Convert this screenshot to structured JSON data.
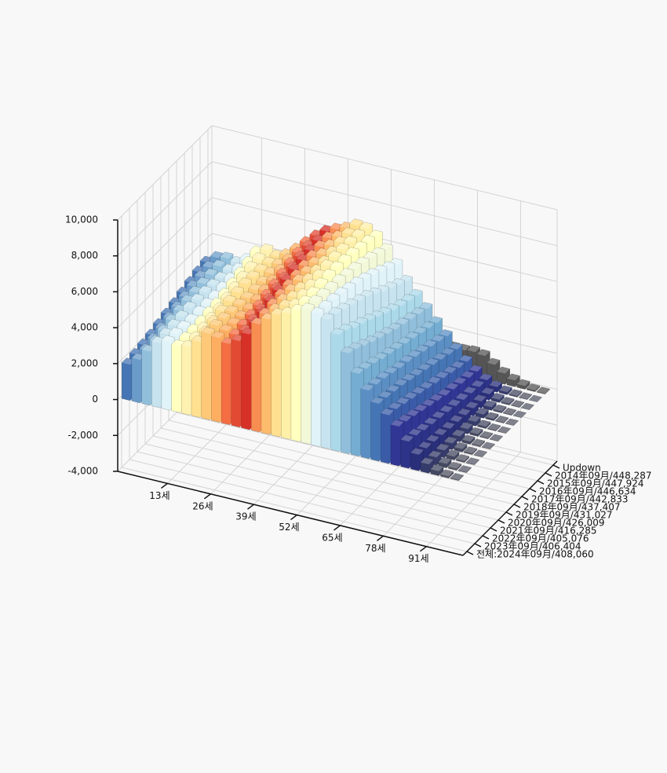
{
  "chart_data": {
    "type": "bar3d",
    "x": [
      0,
      3,
      6,
      9,
      12,
      15,
      18,
      21,
      24,
      27,
      30,
      33,
      36,
      39,
      42,
      45,
      48,
      51,
      54,
      57,
      60,
      63,
      66,
      69,
      72,
      75,
      78,
      81,
      84,
      87,
      90,
      93,
      96,
      99
    ],
    "xlim": [
      -2,
      102
    ],
    "xticks": [
      {
        "value": 13,
        "label": "13세"
      },
      {
        "value": 26,
        "label": "26세"
      },
      {
        "value": 39,
        "label": "39세"
      },
      {
        "value": 52,
        "label": "52세"
      },
      {
        "value": 65,
        "label": "65세"
      },
      {
        "value": 78,
        "label": "78세"
      },
      {
        "value": 91,
        "label": "91세"
      }
    ],
    "zlim": [
      -4000,
      10000
    ],
    "zticks": [
      {
        "value": -4000,
        "label": "-4,000"
      },
      {
        "value": -2000,
        "label": "-2,000"
      },
      0,
      {
        "value": 2000,
        "label": "2,000"
      },
      {
        "value": 4000,
        "label": "4,000"
      },
      {
        "value": 6000,
        "label": "6,000"
      },
      {
        "value": 8000,
        "label": "8,000"
      },
      {
        "value": 10000,
        "label": "10,000"
      }
    ],
    "grid": true,
    "colors": [
      "#4575b4",
      "#6a9bc9",
      "#91bfdb",
      "#c6e3ef",
      "#e0f3f8",
      "#ffffbf",
      "#fff2b0",
      "#fee090",
      "#fdc877",
      "#fdae61",
      "#f46d43",
      "#e34a33",
      "#d73027",
      "#f88d52",
      "#fdbb6c",
      "#fee090",
      "#fff0a8",
      "#ffffbf",
      "#f2f8d8",
      "#e0f3f8",
      "#c6e3ef",
      "#abd9e9",
      "#91bfdb",
      "#74add1",
      "#5b8fc4",
      "#4575b4",
      "#3a5ca8",
      "#313695",
      "#2c3388",
      "#2a2f7a",
      "#353b6a",
      "#444860",
      "#4f5260",
      "#555866"
    ],
    "series": [
      {
        "name": "Updown",
        "color": "#555555",
        "values": [
          -1300,
          -1300,
          -800,
          -100,
          -200,
          -850,
          -1000,
          -400,
          0,
          -550,
          -1250,
          -1450,
          -1350,
          -900,
          -700,
          -600,
          -350,
          250,
          1050,
          1650,
          2250,
          2200,
          1900,
          1550,
          1350,
          1350,
          1400,
          1320,
          960,
          610,
          360,
          185,
          75,
          32
        ]
      },
      {
        "name": "2014年09月/448,287",
        "values": [
          3300,
          3700,
          3800,
          3700,
          4000,
          4550,
          4800,
          4600,
          4800,
          5250,
          5750,
          6250,
          6650,
          6900,
          7100,
          7400,
          7350,
          7050,
          6450,
          5750,
          4950,
          4300,
          3700,
          3050,
          2450,
          1850,
          1300,
          880,
          540,
          290,
          140,
          65,
          25,
          8
        ]
      },
      {
        "name": "2015年09月/447,924",
        "values": [
          3200,
          3600,
          3800,
          3700,
          3900,
          4400,
          4750,
          4650,
          4700,
          5100,
          5600,
          6100,
          6550,
          6850,
          7050,
          7350,
          7400,
          7200,
          6650,
          6000,
          5200,
          4450,
          3850,
          3200,
          2600,
          2000,
          1400,
          980,
          600,
          330,
          160,
          75,
          30,
          10
        ]
      },
      {
        "name": "2016年09月/446,634",
        "values": [
          3050,
          3500,
          3750,
          3700,
          3800,
          4250,
          4700,
          4700,
          4650,
          4950,
          5450,
          5950,
          6450,
          6800,
          7000,
          7300,
          7450,
          7300,
          6850,
          6250,
          5450,
          4600,
          4000,
          3350,
          2750,
          2150,
          1550,
          1080,
          680,
          370,
          180,
          85,
          35,
          12
        ]
      },
      {
        "name": "2017年09月/442,833",
        "values": [
          2900,
          3400,
          3700,
          3750,
          3750,
          4100,
          4600,
          4750,
          4600,
          4800,
          5300,
          5800,
          6350,
          6700,
          6950,
          7200,
          7500,
          7400,
          7000,
          6500,
          5700,
          4800,
          4150,
          3500,
          2900,
          2300,
          1700,
          1200,
          760,
          420,
          210,
          100,
          40,
          15
        ]
      },
      {
        "name": "2018年09月/437,407",
        "values": [
          2750,
          3250,
          3650,
          3800,
          3700,
          3950,
          4450,
          4800,
          4600,
          4700,
          5150,
          5650,
          6250,
          6600,
          6900,
          7100,
          7500,
          7450,
          7150,
          6700,
          6000,
          5050,
          4300,
          3650,
          3050,
          2450,
          1850,
          1300,
          850,
          480,
          240,
          110,
          45,
          18
        ]
      },
      {
        "name": "2019年09月/431,027",
        "values": [
          2600,
          3100,
          3600,
          3800,
          3700,
          3850,
          4300,
          4750,
          4600,
          4600,
          5000,
          5500,
          6100,
          6500,
          6850,
          7050,
          7450,
          7500,
          7250,
          6900,
          6300,
          5300,
          4500,
          3800,
          3200,
          2600,
          2000,
          1450,
          950,
          540,
          270,
          130,
          50,
          20
        ]
      },
      {
        "name": "2020年09月/426,009",
        "values": [
          2450,
          2950,
          3500,
          3800,
          3700,
          3800,
          4150,
          4700,
          4650,
          4550,
          4850,
          5350,
          5950,
          6400,
          6800,
          7000,
          7350,
          7500,
          7350,
          7050,
          6500,
          5550,
          4700,
          3950,
          3300,
          2750,
          2150,
          1600,
          1050,
          600,
          310,
          150,
          60,
          22
        ]
      },
      {
        "name": "2021年09月/416,285",
        "values": [
          2300,
          2800,
          3400,
          3750,
          3700,
          3750,
          4050,
          4600,
          4700,
          4550,
          4750,
          5200,
          5800,
          6300,
          6700,
          6950,
          7250,
          7450,
          7400,
          7200,
          6700,
          5800,
          4900,
          4100,
          3450,
          2900,
          2300,
          1750,
          1150,
          680,
          350,
          170,
          70,
          25
        ]
      },
      {
        "name": "2022年09月/405,076",
        "values": [
          2200,
          2650,
          3250,
          3700,
          3750,
          3700,
          3950,
          4450,
          4750,
          4600,
          4650,
          5050,
          5600,
          6200,
          6600,
          6900,
          7150,
          7400,
          7450,
          7300,
          6900,
          6000,
          5150,
          4300,
          3600,
          3000,
          2450,
          1900,
          1250,
          750,
          400,
          190,
          80,
          30
        ]
      },
      {
        "name": "2023年09月/406,404",
        "values": [
          2100,
          2500,
          3100,
          3650,
          3800,
          3700,
          3850,
          4300,
          4800,
          4650,
          4550,
          4900,
          5450,
          6100,
          6500,
          6850,
          7050,
          7350,
          7500,
          7350,
          7100,
          6300,
          5400,
          4450,
          3700,
          3100,
          2600,
          2050,
          1400,
          820,
          450,
          220,
          90,
          35
        ]
      },
      {
        "name": "전체:2024年09月/408,060",
        "values": [
          2000,
          2400,
          3000,
          3600,
          3800,
          3700,
          3800,
          4200,
          4800,
          4700,
          4500,
          4800,
          5300,
          6000,
          6400,
          6800,
          7000,
          7300,
          7500,
          7400,
          7200,
          6500,
          5600,
          4600,
          3800,
          3200,
          2700,
          2200,
          1500,
          900,
          500,
          250,
          100,
          40
        ]
      }
    ]
  }
}
